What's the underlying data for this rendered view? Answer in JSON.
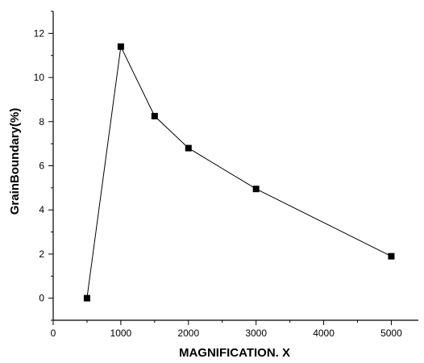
{
  "chart_data": {
    "type": "line",
    "title": "",
    "xlabel": "MAGNIFICATION. X",
    "ylabel": "GrainBoundary(%)",
    "xlim": [
      0,
      5400
    ],
    "ylim": [
      -1,
      13
    ],
    "x_ticks": [
      0,
      1000,
      2000,
      3000,
      4000,
      5000
    ],
    "x_minor_ticks": [
      500,
      1500,
      2500,
      3500,
      4500
    ],
    "y_ticks": [
      0,
      2,
      4,
      6,
      8,
      10,
      12
    ],
    "y_minor_ticks": [
      -1,
      1,
      3,
      5,
      7,
      9,
      11,
      13
    ],
    "grid": false,
    "marker": "square",
    "series": [
      {
        "x": [
          500,
          1000,
          1500,
          2000,
          3000,
          5000
        ],
        "values": [
          0.0,
          11.4,
          8.25,
          6.8,
          4.95,
          1.9
        ]
      }
    ]
  }
}
